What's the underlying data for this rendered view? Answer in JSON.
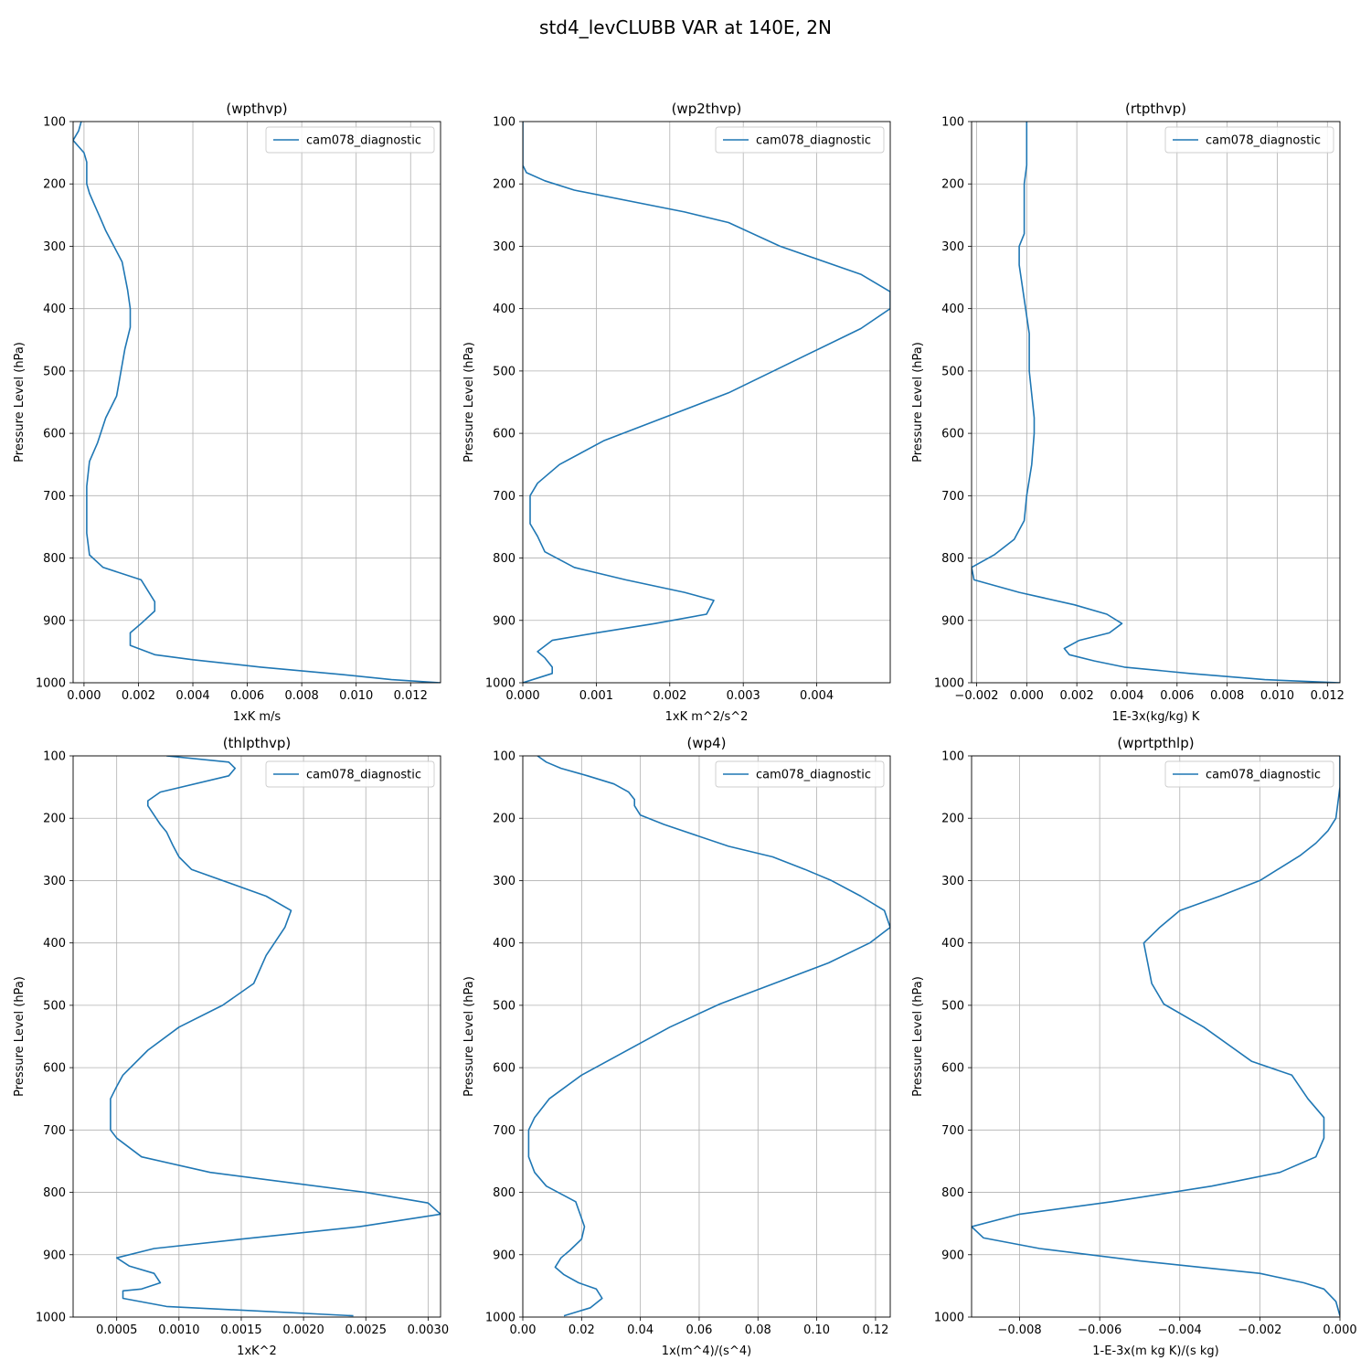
{
  "figure": {
    "suptitle": "std4_levCLUBB VAR at 140E, 2N",
    "line_color": "#1f77b4",
    "grid_color": "#b0b0b0",
    "grid": true
  },
  "chart_data": [
    {
      "type": "line",
      "title": "(wpthvp)",
      "xlabel": "1xK m/s",
      "ylabel": "Pressure Level (hPa)",
      "xlim": [
        -0.0004,
        0.0131
      ],
      "ylim": [
        1000,
        100
      ],
      "xticks": [
        0,
        0.002,
        0.004,
        0.006,
        0.008,
        0.01,
        0.012
      ],
      "xtick_labels": [
        "0.000",
        "0.002",
        "0.004",
        "0.006",
        "0.008",
        "0.010",
        "0.012"
      ],
      "yticks": [
        100,
        200,
        300,
        400,
        500,
        600,
        700,
        800,
        900,
        1000
      ],
      "legend_position": "top-right",
      "series": [
        {
          "name": "cam078_diagnostic",
          "x": [
            -0.0001,
            -0.0002,
            -0.0004,
            0.0,
            0.0001,
            0.0001,
            0.0001,
            0.0002,
            0.0004,
            0.0006,
            0.0008,
            0.0014,
            0.0016,
            0.0017,
            0.0017,
            0.0015,
            0.0012,
            0.0008,
            0.0005,
            0.0002,
            0.0001,
            0.0001,
            0.0001,
            0.0002,
            0.0007,
            0.0021,
            0.0026,
            0.0026,
            0.0021,
            0.0017,
            0.0017,
            0.0026,
            0.004,
            0.0065,
            0.0095,
            0.0113,
            0.0131
          ],
          "y": [
            100,
            115,
            130,
            150,
            165,
            175,
            200,
            215,
            235,
            255,
            275,
            325,
            370,
            400,
            430,
            465,
            540,
            575,
            615,
            645,
            685,
            715,
            760,
            795,
            815,
            835,
            870,
            885,
            905,
            920,
            940,
            955,
            963,
            975,
            987,
            995,
            1000
          ]
        }
      ]
    },
    {
      "type": "line",
      "title": "(wp2thvp)",
      "xlabel": "1xK m^2/s^2",
      "ylabel": "Pressure Level (hPa)",
      "xlim": [
        0,
        0.005
      ],
      "ylim": [
        1000,
        100
      ],
      "xticks": [
        0,
        0.001,
        0.002,
        0.003,
        0.004
      ],
      "xtick_labels": [
        "0.000",
        "0.001",
        "0.002",
        "0.003",
        "0.004"
      ],
      "yticks": [
        100,
        200,
        300,
        400,
        500,
        600,
        700,
        800,
        900,
        1000
      ],
      "legend_position": "top-right",
      "series": [
        {
          "name": "cam078_diagnostic",
          "x": [
            0.0,
            0.0,
            0.0,
            5e-05,
            0.0003,
            0.0007,
            0.0022,
            0.0028,
            0.0035,
            0.0046,
            0.005,
            0.005,
            0.0046,
            0.0028,
            0.0011,
            0.0005,
            0.0002,
            0.0001,
            0.0001,
            0.0001,
            0.0002,
            0.0003,
            0.0007,
            0.0014,
            0.0022,
            0.0026,
            0.0025,
            0.0018,
            0.001,
            0.0004,
            0.0002,
            0.0003,
            0.0004,
            0.0004,
            0.0
          ],
          "y": [
            100,
            150,
            170,
            182,
            195,
            210,
            245,
            262,
            300,
            345,
            373,
            400,
            432,
            535,
            612,
            650,
            680,
            700,
            715,
            745,
            765,
            790,
            815,
            835,
            855,
            868,
            890,
            905,
            920,
            932,
            950,
            960,
            975,
            985,
            1000
          ]
        }
      ]
    },
    {
      "type": "line",
      "title": "(rtpthvp)",
      "xlabel": "1E-3x(kg/kg) K",
      "ylabel": "Pressure Level (hPa)",
      "xlim": [
        -0.0022,
        0.0125
      ],
      "ylim": [
        1000,
        100
      ],
      "xticks": [
        -0.002,
        0,
        0.002,
        0.004,
        0.006,
        0.008,
        0.01,
        0.012
      ],
      "xtick_labels": [
        "−0.002",
        "0.000",
        "0.002",
        "0.004",
        "0.006",
        "0.008",
        "0.010",
        "0.012"
      ],
      "yticks": [
        100,
        200,
        300,
        400,
        500,
        600,
        700,
        800,
        900,
        1000
      ],
      "legend_position": "top-right",
      "series": [
        {
          "name": "cam078_diagnostic",
          "x": [
            0.0,
            0.0,
            -0.0001,
            -0.0001,
            -0.0001,
            -0.0003,
            -0.0003,
            0.0001,
            0.0001,
            0.0003,
            0.0003,
            0.0002,
            0.0,
            -0.0001,
            -0.0005,
            -0.0013,
            -0.0022,
            -0.0021,
            -0.0003,
            0.0019,
            0.0032,
            0.0038,
            0.0033,
            0.0021,
            0.0015,
            0.0017,
            0.0027,
            0.0039,
            0.0065,
            0.0095,
            0.0125
          ],
          "y": [
            100,
            170,
            200,
            250,
            280,
            300,
            330,
            440,
            500,
            575,
            600,
            650,
            700,
            740,
            770,
            795,
            815,
            835,
            855,
            875,
            890,
            905,
            920,
            932,
            945,
            955,
            965,
            975,
            985,
            995,
            1000
          ]
        }
      ]
    },
    {
      "type": "line",
      "title": "(thlpthvp)",
      "xlabel": "1xK^2",
      "ylabel": "Pressure Level (hPa)",
      "xlim": [
        0.00015,
        0.0031
      ],
      "ylim": [
        1000,
        100
      ],
      "xticks": [
        0.0005,
        0.001,
        0.0015,
        0.002,
        0.0025,
        0.003
      ],
      "xtick_labels": [
        "0.0005",
        "0.0010",
        "0.0015",
        "0.0020",
        "0.0025",
        "0.0030"
      ],
      "yticks": [
        100,
        200,
        300,
        400,
        500,
        600,
        700,
        800,
        900,
        1000
      ],
      "legend_position": "top-right",
      "series": [
        {
          "name": "cam078_diagnostic",
          "x": [
            0.0009,
            0.0014,
            0.00145,
            0.0014,
            0.00085,
            0.00075,
            0.00075,
            0.0008,
            0.00085,
            0.0009,
            0.00095,
            0.001,
            0.0011,
            0.0017,
            0.0019,
            0.00185,
            0.0017,
            0.0016,
            0.00135,
            0.001,
            0.00075,
            0.00055,
            0.0005,
            0.00045,
            0.00045,
            0.00045,
            0.0005,
            0.0007,
            0.00125,
            0.0025,
            0.003,
            0.0031,
            0.00245,
            0.0015,
            0.0008,
            0.0005,
            0.0006,
            0.0008,
            0.00085,
            0.0007,
            0.00055,
            0.00055,
            0.0009,
            0.0024
          ],
          "y": [
            100,
            110,
            120,
            132,
            158,
            172,
            180,
            195,
            210,
            222,
            243,
            262,
            282,
            325,
            348,
            375,
            420,
            465,
            500,
            535,
            572,
            612,
            630,
            650,
            680,
            700,
            713,
            743,
            768,
            800,
            817,
            835,
            855,
            875,
            890,
            905,
            918,
            930,
            945,
            955,
            958,
            970,
            983,
            998
          ]
        }
      ]
    },
    {
      "type": "line",
      "title": "(wp4)",
      "xlabel": "1x(m^4)/(s^4)",
      "ylabel": "Pressure Level (hPa)",
      "xlim": [
        0,
        0.125
      ],
      "ylim": [
        1000,
        100
      ],
      "xticks": [
        0,
        0.02,
        0.04,
        0.06,
        0.08,
        0.1,
        0.12
      ],
      "xtick_labels": [
        "0.00",
        "0.02",
        "0.04",
        "0.06",
        "0.08",
        "0.10",
        "0.12"
      ],
      "yticks": [
        100,
        200,
        300,
        400,
        500,
        600,
        700,
        800,
        900,
        1000
      ],
      "legend_position": "top-right",
      "series": [
        {
          "name": "cam078_diagnostic",
          "x": [
            0.005,
            0.008,
            0.013,
            0.022,
            0.031,
            0.036,
            0.038,
            0.038,
            0.04,
            0.048,
            0.07,
            0.085,
            0.096,
            0.105,
            0.115,
            0.123,
            0.125,
            0.118,
            0.104,
            0.067,
            0.05,
            0.02,
            0.009,
            0.004,
            0.002,
            0.002,
            0.002,
            0.004,
            0.008,
            0.018,
            0.021,
            0.02,
            0.016,
            0.013,
            0.011,
            0.014,
            0.019,
            0.025,
            0.027,
            0.023,
            0.014
          ],
          "y": [
            100,
            110,
            120,
            132,
            145,
            158,
            170,
            180,
            195,
            210,
            245,
            262,
            282,
            300,
            325,
            348,
            375,
            400,
            432,
            498,
            535,
            612,
            650,
            680,
            700,
            715,
            743,
            768,
            790,
            815,
            855,
            875,
            893,
            905,
            920,
            932,
            945,
            955,
            970,
            985,
            998
          ]
        }
      ]
    },
    {
      "type": "line",
      "title": "(wprtpthlp)",
      "xlabel": "1-E-3x(m kg K)/(s kg)",
      "ylabel": "Pressure Level (hPa)",
      "xlim": [
        -0.0092,
        0.0
      ],
      "ylim": [
        1000,
        100
      ],
      "xticks": [
        -0.008,
        -0.006,
        -0.004,
        -0.002,
        0.0
      ],
      "xtick_labels": [
        "−0.008",
        "−0.006",
        "−0.004",
        "−0.002",
        "0.000"
      ],
      "yticks": [
        100,
        200,
        300,
        400,
        500,
        600,
        700,
        800,
        900,
        1000
      ],
      "legend_position": "top-right",
      "series": [
        {
          "name": "cam078_diagnostic",
          "x": [
            0.0,
            0.0,
            -0.0001,
            -0.0003,
            -0.0006,
            -0.001,
            -0.0015,
            -0.002,
            -0.003,
            -0.004,
            -0.0045,
            -0.0049,
            -0.0048,
            -0.0047,
            -0.0044,
            -0.0034,
            -0.0022,
            -0.0012,
            -0.0008,
            -0.0004,
            -0.0004,
            -0.0006,
            -0.0015,
            -0.0032,
            -0.0057,
            -0.008,
            -0.0092,
            -0.0089,
            -0.0075,
            -0.005,
            -0.0035,
            -0.002,
            -0.0009,
            -0.0004,
            -0.0001,
            0.0
          ],
          "y": [
            100,
            150,
            200,
            220,
            240,
            260,
            280,
            300,
            325,
            348,
            375,
            400,
            432,
            465,
            498,
            535,
            590,
            612,
            650,
            680,
            713,
            743,
            768,
            790,
            815,
            835,
            855,
            873,
            890,
            910,
            920,
            930,
            945,
            955,
            975,
            998
          ]
        }
      ]
    }
  ]
}
